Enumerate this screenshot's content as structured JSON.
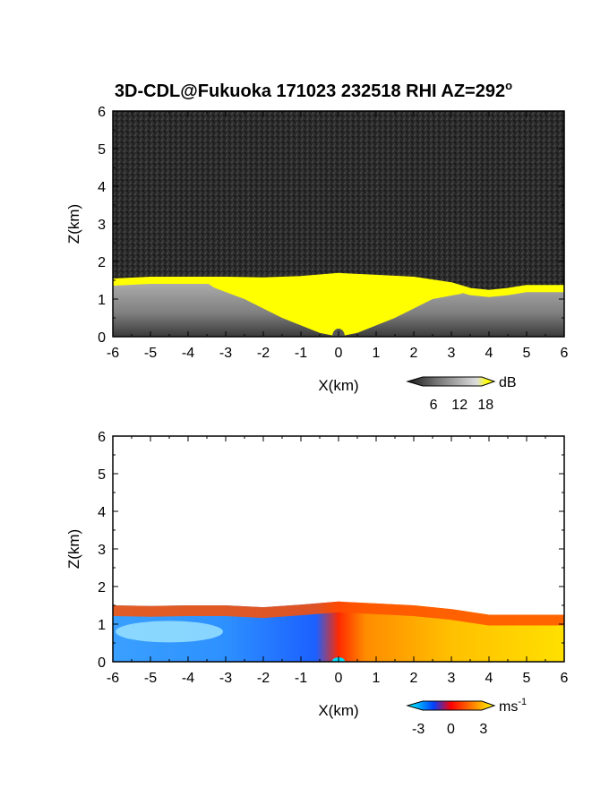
{
  "figure": {
    "title": "3D-CDL@Fukuoka 171023 232518 RHI AZ=292",
    "title_degree": "o"
  },
  "chart_data": [
    {
      "type": "heatmap",
      "panel": "top",
      "quantity": "SNR",
      "xlabel": "X(km)",
      "ylabel": "Z(km)",
      "xlim": [
        -6,
        6
      ],
      "ylim": [
        0,
        6
      ],
      "xticks": [
        "-6",
        "-5",
        "-4",
        "-3",
        "-2",
        "-1",
        "0",
        "1",
        "2",
        "3",
        "4",
        "5",
        "6"
      ],
      "yticks": [
        "0",
        "1",
        "2",
        "3",
        "4",
        "5",
        "6"
      ],
      "colorbar": {
        "unit": "dB",
        "ticks": [
          "6",
          "12",
          "18"
        ],
        "tick_values": [
          6,
          12,
          18
        ],
        "range": [
          0,
          20
        ],
        "colors": [
          "#1a1a1a",
          "#777777",
          "#dddddd",
          "#ffff00"
        ]
      },
      "echo_top_km": [
        [
          -6,
          1.45
        ],
        [
          -5,
          1.5
        ],
        [
          -4,
          1.5
        ],
        [
          -3,
          1.5
        ],
        [
          -2,
          1.48
        ],
        [
          -1,
          1.52
        ],
        [
          0,
          1.6
        ],
        [
          1,
          1.55
        ],
        [
          2,
          1.5
        ],
        [
          3,
          1.35
        ],
        [
          3.5,
          1.2
        ],
        [
          4,
          1.15
        ],
        [
          4.5,
          1.2
        ],
        [
          5,
          1.28
        ],
        [
          6,
          1.28
        ]
      ],
      "background_level_db": 2
    },
    {
      "type": "heatmap",
      "panel": "bottom",
      "quantity": "radial velocity",
      "xlabel": "X(km)",
      "ylabel": "Z(km)",
      "xlim": [
        -6,
        6
      ],
      "ylim": [
        0,
        6
      ],
      "xticks": [
        "-6",
        "-5",
        "-4",
        "-3",
        "-2",
        "-1",
        "0",
        "1",
        "2",
        "3",
        "4",
        "5",
        "6"
      ],
      "yticks": [
        "0",
        "1",
        "2",
        "3",
        "4",
        "5",
        "6"
      ],
      "colorbar": {
        "unit": "ms",
        "unit_exponent": "-1",
        "ticks": [
          "-3",
          "0",
          "3"
        ],
        "tick_values": [
          -3,
          0,
          3
        ],
        "range": [
          -4,
          4
        ],
        "colors": [
          "#00ffff",
          "#0040ff",
          "#ff0000",
          "#ffff00"
        ]
      },
      "echo_top_km": [
        [
          -6,
          1.5
        ],
        [
          -5,
          1.48
        ],
        [
          -4,
          1.5
        ],
        [
          -3,
          1.5
        ],
        [
          -2,
          1.45
        ],
        [
          -1,
          1.52
        ],
        [
          0,
          1.6
        ],
        [
          1,
          1.55
        ],
        [
          2,
          1.5
        ],
        [
          3,
          1.4
        ],
        [
          4,
          1.25
        ],
        [
          5,
          1.25
        ],
        [
          6,
          1.25
        ]
      ],
      "velocity_ms_left": -2.5,
      "velocity_ms_right": 2.0
    }
  ]
}
